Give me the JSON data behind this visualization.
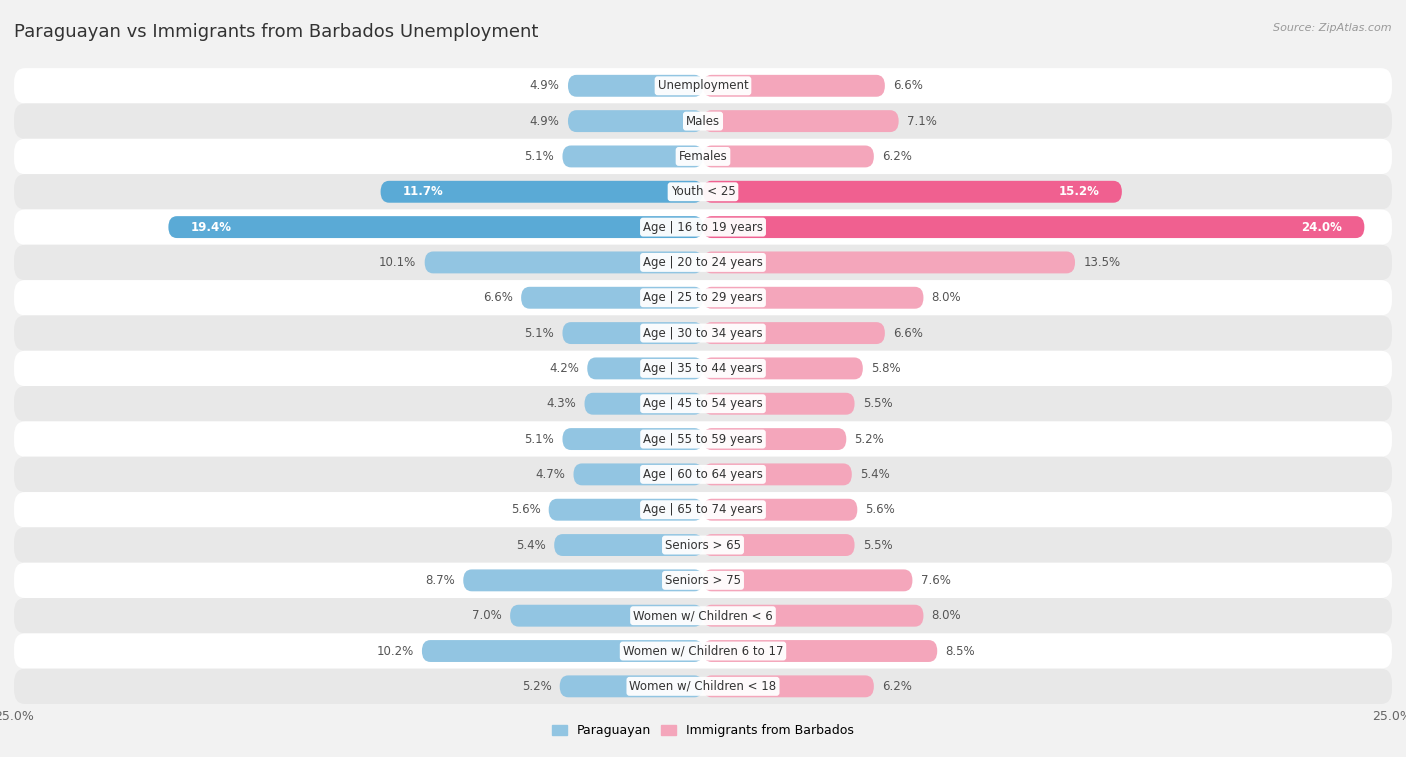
{
  "title": "Paraguayan vs Immigrants from Barbados Unemployment",
  "source": "Source: ZipAtlas.com",
  "categories": [
    "Unemployment",
    "Males",
    "Females",
    "Youth < 25",
    "Age | 16 to 19 years",
    "Age | 20 to 24 years",
    "Age | 25 to 29 years",
    "Age | 30 to 34 years",
    "Age | 35 to 44 years",
    "Age | 45 to 54 years",
    "Age | 55 to 59 years",
    "Age | 60 to 64 years",
    "Age | 65 to 74 years",
    "Seniors > 65",
    "Seniors > 75",
    "Women w/ Children < 6",
    "Women w/ Children 6 to 17",
    "Women w/ Children < 18"
  ],
  "paraguayan": [
    4.9,
    4.9,
    5.1,
    11.7,
    19.4,
    10.1,
    6.6,
    5.1,
    4.2,
    4.3,
    5.1,
    4.7,
    5.6,
    5.4,
    8.7,
    7.0,
    10.2,
    5.2
  ],
  "barbados": [
    6.6,
    7.1,
    6.2,
    15.2,
    24.0,
    13.5,
    8.0,
    6.6,
    5.8,
    5.5,
    5.2,
    5.4,
    5.6,
    5.5,
    7.6,
    8.0,
    8.5,
    6.2
  ],
  "paraguayan_color": "#92c5e2",
  "barbados_color": "#f4a6bb",
  "highlight_paraguayan_color": "#5aaad6",
  "highlight_barbados_color": "#f06090",
  "bg_color": "#f2f2f2",
  "row_color_even": "#ffffff",
  "row_color_odd": "#e8e8e8",
  "axis_max": 25.0,
  "legend_paraguayan": "Paraguayan",
  "legend_barbados": "Immigrants from Barbados",
  "title_fontsize": 13,
  "label_fontsize": 8.5,
  "value_fontsize": 8.5,
  "highlight_indices": [
    3,
    4
  ]
}
